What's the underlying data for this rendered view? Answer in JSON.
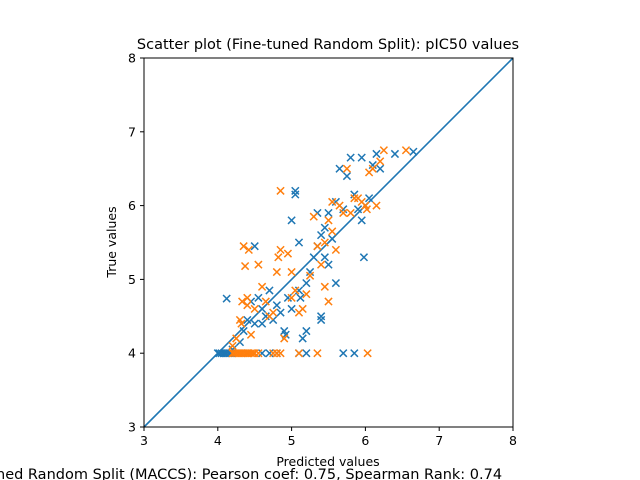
{
  "chart_data": {
    "type": "scatter",
    "title": "Scatter plot (Fine-tuned Random Split): pIC50 values",
    "xlabel": "Predicted values",
    "ylabel": "True values",
    "xlim": [
      3,
      8
    ],
    "ylim": [
      3,
      8
    ],
    "xticks": [
      "3",
      "4",
      "5",
      "6",
      "7",
      "8"
    ],
    "yticks": [
      "3",
      "4",
      "5",
      "6",
      "7",
      "8"
    ],
    "caption": "ned Random Split (MACCS): Pearson coef: 0.75, Spearman Rank: 0.74",
    "marker": "x",
    "grid": false,
    "reference_line": {
      "from": [
        3,
        3
      ],
      "to": [
        8,
        8
      ],
      "color": "#1f77b4"
    },
    "series": [
      {
        "color": "#1f77b4",
        "points": [
          [
            4.0,
            4.0
          ],
          [
            4.02,
            4.0
          ],
          [
            4.05,
            4.0
          ],
          [
            4.08,
            4.0
          ],
          [
            4.1,
            4.0
          ],
          [
            4.12,
            4.0
          ],
          [
            4.15,
            4.0
          ],
          [
            4.18,
            4.0
          ],
          [
            4.6,
            4.0
          ],
          [
            4.7,
            4.0
          ],
          [
            4.8,
            4.0
          ],
          [
            5.1,
            4.0
          ],
          [
            5.2,
            4.0
          ],
          [
            5.7,
            4.0
          ],
          [
            5.85,
            4.0
          ],
          [
            4.12,
            4.74
          ],
          [
            4.2,
            4.05
          ],
          [
            4.3,
            4.15
          ],
          [
            4.35,
            4.3
          ],
          [
            4.4,
            4.45
          ],
          [
            4.45,
            4.7
          ],
          [
            4.5,
            4.4
          ],
          [
            4.5,
            5.45
          ],
          [
            4.55,
            4.75
          ],
          [
            4.6,
            4.6
          ],
          [
            4.6,
            4.4
          ],
          [
            4.65,
            4.5
          ],
          [
            4.7,
            4.85
          ],
          [
            4.75,
            4.45
          ],
          [
            4.8,
            4.65
          ],
          [
            4.85,
            4.55
          ],
          [
            4.9,
            4.3
          ],
          [
            4.92,
            4.25
          ],
          [
            4.95,
            4.75
          ],
          [
            5.0,
            4.6
          ],
          [
            5.0,
            5.8
          ],
          [
            5.05,
            6.2
          ],
          [
            5.05,
            6.15
          ],
          [
            5.1,
            4.85
          ],
          [
            5.1,
            5.5
          ],
          [
            5.12,
            4.75
          ],
          [
            5.15,
            4.2
          ],
          [
            5.2,
            4.95
          ],
          [
            5.2,
            4.3
          ],
          [
            5.25,
            5.1
          ],
          [
            5.3,
            5.3
          ],
          [
            5.35,
            5.45
          ],
          [
            5.35,
            5.9
          ],
          [
            5.4,
            4.5
          ],
          [
            5.4,
            4.45
          ],
          [
            5.4,
            5.6
          ],
          [
            5.45,
            5.3
          ],
          [
            5.45,
            5.7
          ],
          [
            5.5,
            5.9
          ],
          [
            5.5,
            5.2
          ],
          [
            5.55,
            5.55
          ],
          [
            5.6,
            4.95
          ],
          [
            5.6,
            6.05
          ],
          [
            5.65,
            6.5
          ],
          [
            5.7,
            5.95
          ],
          [
            5.75,
            6.4
          ],
          [
            5.8,
            6.65
          ],
          [
            5.85,
            6.15
          ],
          [
            5.9,
            5.95
          ],
          [
            5.95,
            6.65
          ],
          [
            5.95,
            5.8
          ],
          [
            5.98,
            5.3
          ],
          [
            6.0,
            6.0
          ],
          [
            6.05,
            6.1
          ],
          [
            6.1,
            6.55
          ],
          [
            6.15,
            6.7
          ],
          [
            6.2,
            6.5
          ],
          [
            6.4,
            6.7
          ],
          [
            6.65,
            6.73
          ]
        ]
      },
      {
        "color": "#ff7f0e",
        "points": [
          [
            4.2,
            4.0
          ],
          [
            4.22,
            4.0
          ],
          [
            4.25,
            4.0
          ],
          [
            4.28,
            4.0
          ],
          [
            4.3,
            4.0
          ],
          [
            4.32,
            4.0
          ],
          [
            4.35,
            4.0
          ],
          [
            4.38,
            4.0
          ],
          [
            4.4,
            4.0
          ],
          [
            4.42,
            4.0
          ],
          [
            4.45,
            4.0
          ],
          [
            4.48,
            4.0
          ],
          [
            4.5,
            4.0
          ],
          [
            4.55,
            4.0
          ],
          [
            4.75,
            4.0
          ],
          [
            4.8,
            4.0
          ],
          [
            4.85,
            4.0
          ],
          [
            5.1,
            4.0
          ],
          [
            5.35,
            4.0
          ],
          [
            6.03,
            4.0
          ],
          [
            4.2,
            4.1
          ],
          [
            4.25,
            4.2
          ],
          [
            4.3,
            4.45
          ],
          [
            4.32,
            4.4
          ],
          [
            4.33,
            4.7
          ],
          [
            4.35,
            5.45
          ],
          [
            4.37,
            5.18
          ],
          [
            4.4,
            4.75
          ],
          [
            4.4,
            4.65
          ],
          [
            4.42,
            5.4
          ],
          [
            4.45,
            4.25
          ],
          [
            4.5,
            4.6
          ],
          [
            4.55,
            5.2
          ],
          [
            4.6,
            4.9
          ],
          [
            4.65,
            4.7
          ],
          [
            4.7,
            4.5
          ],
          [
            4.75,
            4.55
          ],
          [
            4.8,
            5.1
          ],
          [
            4.82,
            5.3
          ],
          [
            4.85,
            6.2
          ],
          [
            4.85,
            5.4
          ],
          [
            4.9,
            4.2
          ],
          [
            4.95,
            5.35
          ],
          [
            5.0,
            4.75
          ],
          [
            5.0,
            5.1
          ],
          [
            5.05,
            4.85
          ],
          [
            5.1,
            4.55
          ],
          [
            5.15,
            4.6
          ],
          [
            5.2,
            4.8
          ],
          [
            5.25,
            5.05
          ],
          [
            5.3,
            5.85
          ],
          [
            5.35,
            5.45
          ],
          [
            5.4,
            5.2
          ],
          [
            5.45,
            5.5
          ],
          [
            5.45,
            4.9
          ],
          [
            5.5,
            4.7
          ],
          [
            5.5,
            5.8
          ],
          [
            5.55,
            5.65
          ],
          [
            5.55,
            6.05
          ],
          [
            5.6,
            5.4
          ],
          [
            5.65,
            6.0
          ],
          [
            5.7,
            5.9
          ],
          [
            5.75,
            6.5
          ],
          [
            5.8,
            5.9
          ],
          [
            5.85,
            6.1
          ],
          [
            5.9,
            6.1
          ],
          [
            5.95,
            6.05
          ],
          [
            6.0,
            6.0
          ],
          [
            6.02,
            5.95
          ],
          [
            6.05,
            6.45
          ],
          [
            6.1,
            6.5
          ],
          [
            6.15,
            6.0
          ],
          [
            6.2,
            6.6
          ],
          [
            6.25,
            6.75
          ],
          [
            6.55,
            6.75
          ]
        ]
      }
    ]
  }
}
